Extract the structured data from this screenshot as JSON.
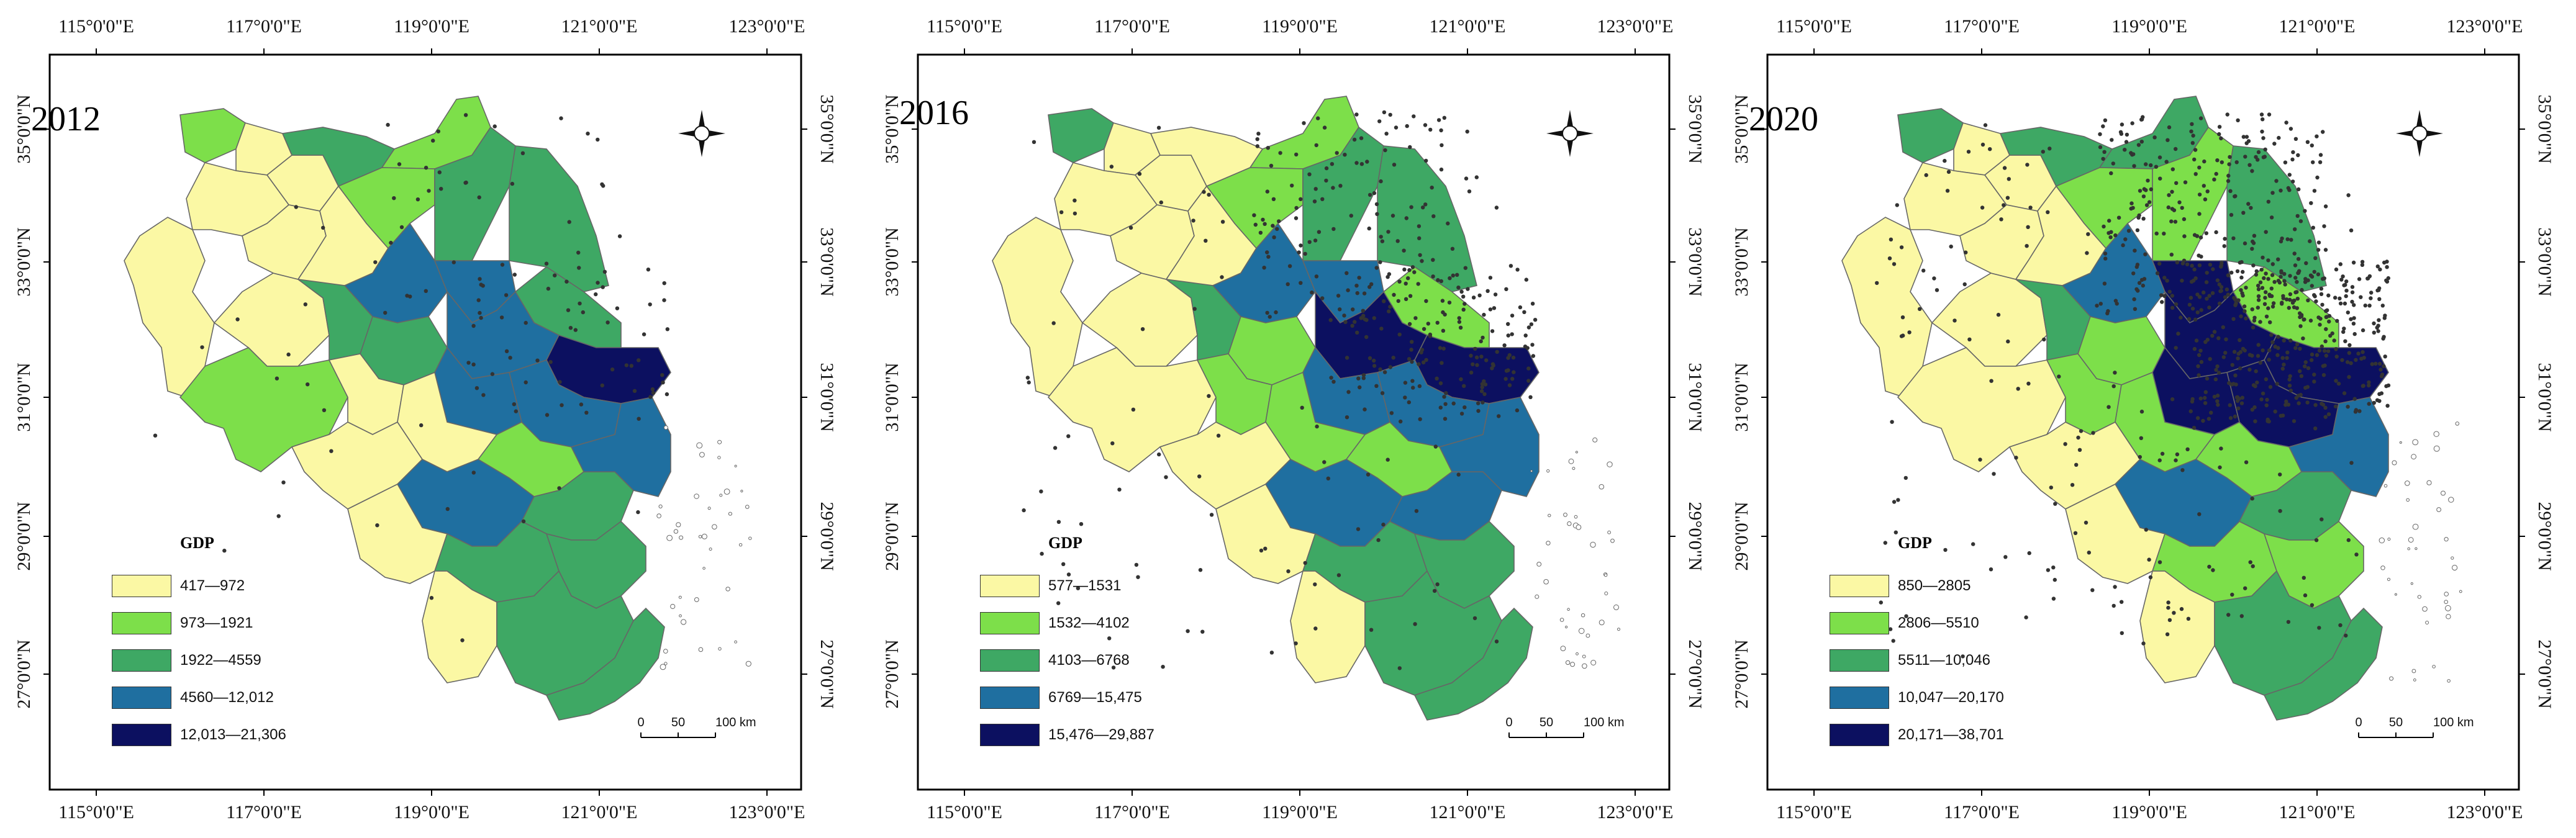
{
  "colors": {
    "c1": "#fbf8a4",
    "c2": "#7ddf4a",
    "c3": "#3ea864",
    "c4": "#1f6fa0",
    "c5": "#0c1060",
    "border": "#666666",
    "point": "#333333"
  },
  "axes": {
    "lon_labels": [
      "115°0'0\"E",
      "117°0'0\"E",
      "119°0'0\"E",
      "121°0'0\"E",
      "123°0'0\"E"
    ],
    "lat_labels": [
      "35°0'0\"N",
      "33°0'0\"N",
      "31°0'0\"N",
      "29°0'0\"N",
      "27°0'0\"N"
    ]
  },
  "legend_title": "GDP",
  "scale_bar": {
    "zero": "0",
    "mid": "50",
    "end": "100 km"
  },
  "panels": [
    {
      "year": "2012",
      "classes": [
        "417—972",
        "973—1921",
        "1922—4559",
        "4560—12,012",
        "12,013—21,306"
      ],
      "point_density": 1
    },
    {
      "year": "2016",
      "classes": [
        "577—1531",
        "1532—4102",
        "4103—6768",
        "6769—15,475",
        "15,476—29,887"
      ],
      "point_density": 2
    },
    {
      "year": "2020",
      "classes": [
        "850—2805",
        "2806—5510",
        "5511—10,046",
        "10,047—20,170",
        "20,171—38,701"
      ],
      "point_density": 3
    }
  ]
}
